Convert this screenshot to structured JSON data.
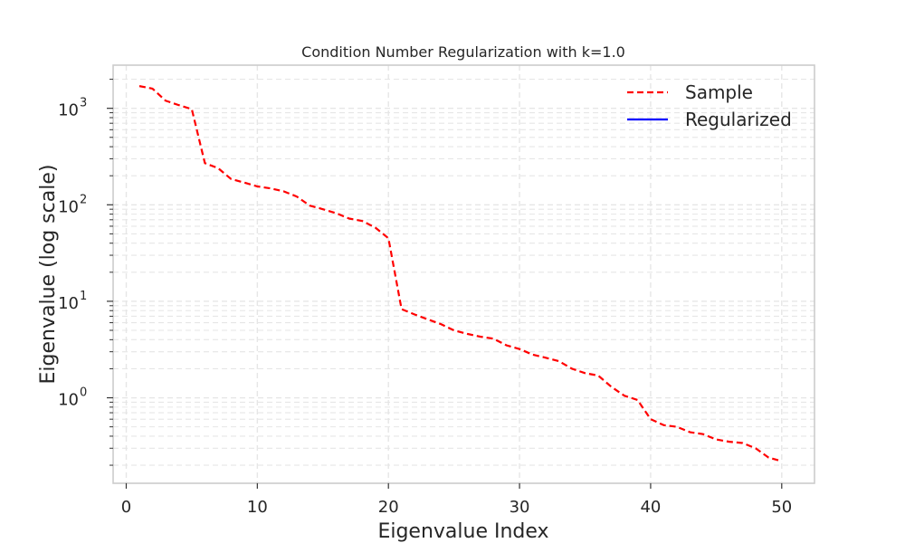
{
  "chart_data": {
    "type": "line",
    "title": "Condition Number Regularization with k=1.0",
    "xlabel": "Eigenvalue Index",
    "ylabel": "Eigenvalue (log scale)",
    "xlim": [
      -1,
      52.5
    ],
    "ylim": [
      0.13,
      2800
    ],
    "yscale": "log",
    "grid": true,
    "legend_position": "top-right",
    "x_ticks": [
      0,
      10,
      20,
      30,
      40,
      50
    ],
    "y_ticks": [
      {
        "value": 1,
        "base": "10",
        "exp": "0"
      },
      {
        "value": 10,
        "base": "10",
        "exp": "1"
      },
      {
        "value": 100,
        "base": "10",
        "exp": "2"
      },
      {
        "value": 1000,
        "base": "10",
        "exp": "3"
      }
    ],
    "series": [
      {
        "name": "Sample",
        "color": "#ff0000",
        "style": "dashed",
        "x": [
          1,
          2,
          3,
          4,
          5,
          6,
          7,
          8,
          9,
          10,
          11,
          12,
          13,
          14,
          15,
          16,
          17,
          18,
          19,
          20,
          21,
          22,
          23,
          24,
          25,
          26,
          27,
          28,
          29,
          30,
          31,
          32,
          33,
          34,
          35,
          36,
          37,
          38,
          39,
          40,
          41,
          42,
          43,
          44,
          45,
          46,
          47,
          48,
          49,
          50
        ],
        "values": [
          1700,
          1600,
          1200,
          1080,
          980,
          270,
          240,
          185,
          170,
          155,
          148,
          138,
          122,
          98,
          90,
          82,
          72,
          68,
          58,
          45,
          8.3,
          7.3,
          6.5,
          5.8,
          5.0,
          4.6,
          4.3,
          4.1,
          3.5,
          3.2,
          2.8,
          2.6,
          2.4,
          2.0,
          1.8,
          1.7,
          1.3,
          1.05,
          0.95,
          0.6,
          0.52,
          0.5,
          0.44,
          0.42,
          0.37,
          0.35,
          0.34,
          0.3,
          0.24,
          0.22
        ]
      },
      {
        "name": "Regularized",
        "color": "#0000ff",
        "style": "solid",
        "x": [],
        "values": []
      }
    ]
  }
}
